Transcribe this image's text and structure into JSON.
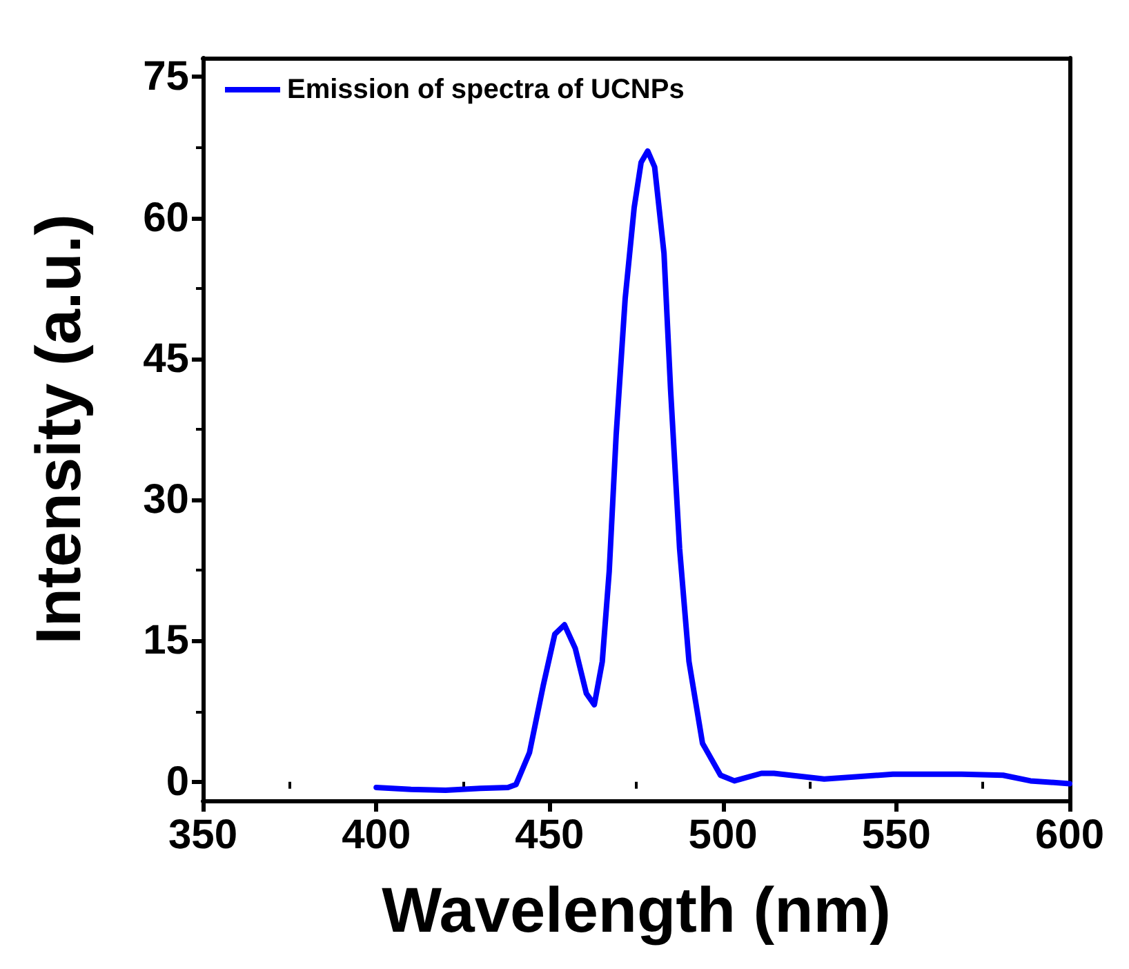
{
  "chart_data": {
    "type": "line",
    "xlabel": "Wavelength (nm)",
    "ylabel": "Intensity (a.u.)",
    "x": [
      400,
      410,
      420,
      430,
      438,
      440.3,
      444.2,
      448.2,
      451.5,
      454.3,
      457.4,
      460.6,
      462.9,
      465.2,
      467.2,
      469.2,
      471.8,
      474.4,
      476.4,
      478.3,
      480.3,
      483,
      484.9,
      487.5,
      490.2,
      494.1,
      499.3,
      503.3,
      511.1,
      514.7,
      529.2,
      549,
      568.9,
      580.8,
      588.7,
      600
    ],
    "series": [
      {
        "name": "Emission of spectra of UCNPs",
        "color": "#0000ff",
        "values": [
          -0.6,
          -0.8,
          -0.9,
          -0.7,
          -0.6,
          -0.3,
          3.1,
          10.3,
          15.7,
          16.7,
          14.2,
          9.4,
          8.2,
          12.8,
          22.4,
          36.9,
          51.4,
          61.1,
          65.9,
          67.1,
          65.4,
          56.2,
          41.7,
          24.8,
          12.8,
          4.1,
          0.7,
          0.1,
          0.9,
          0.9,
          0.3,
          0.8,
          0.8,
          0.7,
          0.1,
          -0.2
        ]
      }
    ],
    "xlim": [
      350,
      600
    ],
    "xticks": [
      350,
      400,
      450,
      500,
      550,
      600
    ],
    "ylim": [
      -2,
      77
    ],
    "yticks": [
      0,
      15,
      30,
      45,
      60,
      75
    ],
    "legend": "top left",
    "marker": "none",
    "grid": false
  }
}
